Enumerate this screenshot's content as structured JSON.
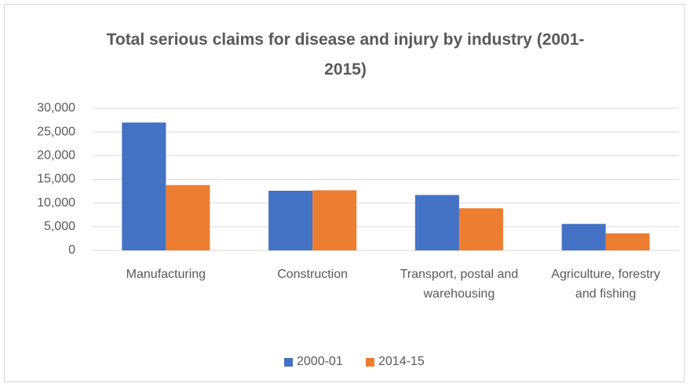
{
  "chart_data": {
    "type": "bar",
    "title": "Total serious claims for disease and injury by industry (2001-2015)",
    "categories": [
      "Manufacturing",
      "Construction",
      "Transport, postal and warehousing",
      "Agriculture, forestry and fishing"
    ],
    "series": [
      {
        "name": "2000-01",
        "color": "#4472c4",
        "values": [
          27000,
          12600,
          11700,
          5600
        ]
      },
      {
        "name": "2014-15",
        "color": "#ed7d31",
        "values": [
          13800,
          12700,
          8900,
          3600
        ]
      }
    ],
    "ylim": [
      0,
      30000
    ],
    "yticks": [
      0,
      {
        "value": 5000,
        "label": "5,000"
      },
      {
        "value": 10000,
        "label": "10,000"
      },
      {
        "value": 15000,
        "label": "15,000"
      },
      {
        "value": 20000,
        "label": "20,000"
      },
      {
        "value": 25000,
        "label": "25,000"
      },
      {
        "value": 30000,
        "label": "30,000"
      }
    ],
    "grid": true,
    "legend": "bottom"
  }
}
